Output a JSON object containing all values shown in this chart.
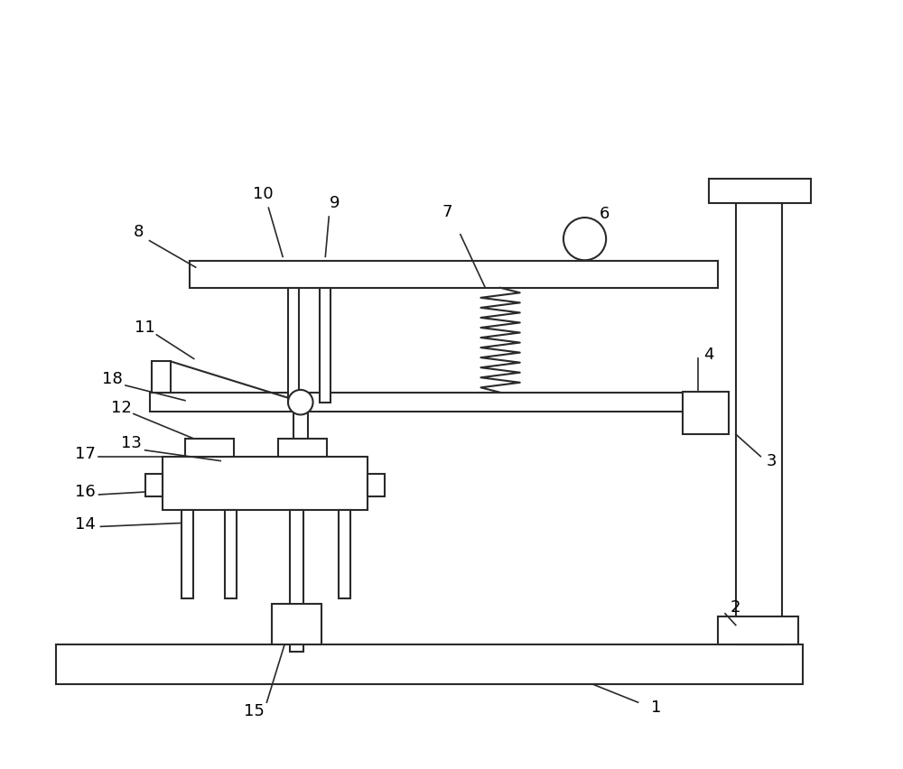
{
  "bg_color": "#ffffff",
  "line_color": "#2a2a2a",
  "lw": 1.5,
  "fig_width": 10.0,
  "fig_height": 8.52,
  "fs": 13
}
